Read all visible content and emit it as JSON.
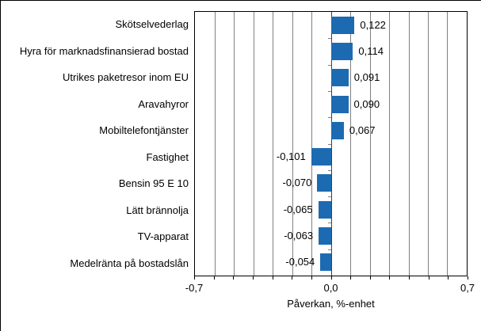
{
  "chart_data": {
    "type": "bar",
    "orientation": "horizontal",
    "title": "",
    "xlabel": "Påverkan, %-enhet",
    "xlim": [
      -0.7,
      0.7
    ],
    "grid_step": 0.1,
    "grid": true,
    "legend": null,
    "x_tick_labels": [
      {
        "value": -0.7,
        "label": "-0,7",
        "pos": 0
      },
      {
        "value": 0.0,
        "label": "0,0",
        "pos": 50
      },
      {
        "value": 0.7,
        "label": "0,7",
        "pos": 100
      }
    ],
    "categories": [
      "Skötselvederlag",
      "Hyra för marknadsfinansierad bostad",
      "Utrikes paketresor inom EU",
      "Aravahyror",
      "Mobiltelefontjänster",
      "Fastighet",
      "Bensin 95 E 10",
      "Lätt brännolja",
      "TV-apparat",
      "Medelränta på bostadslån"
    ],
    "values": [
      0.122,
      0.114,
      0.091,
      0.09,
      0.067,
      -0.101,
      -0.07,
      -0.065,
      -0.063,
      -0.054
    ],
    "value_labels": [
      "0,122",
      "0,114",
      "0,091",
      "0,090",
      "0,067",
      "-0,101",
      "-0,070",
      "-0,065",
      "-0,063",
      "-0,054"
    ],
    "colors": {
      "bar": "#1c6bb2",
      "grid": "#808080",
      "zero_axis": "#404040",
      "frame": "#000000",
      "text": "#000000",
      "background": "#ffffff"
    }
  }
}
